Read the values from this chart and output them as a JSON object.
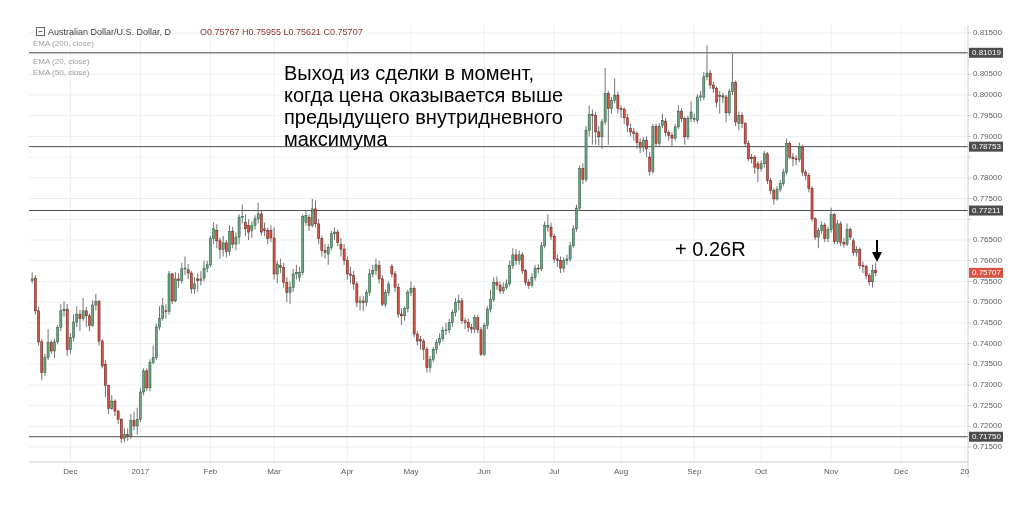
{
  "chart_data": {
    "type": "candlestick",
    "title": "Australian Dollar/U.S. Dollar, D",
    "subtitle": "O0.75767 H0.75955 L0.75621 C0.75707",
    "annotations": [
      "EMA (200, close)",
      "EMA (20, close)",
      "EMA (50, close)",
      "Выход из сделки в момент,\nкогда цена оказывается выше\nпредыдущего внутридневного\nмаксимума",
      "+ 0.26R",
      "0.75707"
    ],
    "categories": [
      null,
      null,
      null,
      null,
      null,
      null,
      null,
      null,
      null,
      null,
      null,
      null,
      "Dec",
      null,
      null,
      null,
      null,
      null,
      null,
      null,
      null,
      null,
      null,
      null,
      null,
      null,
      null,
      null,
      null,
      null,
      null,
      null,
      null,
      null,
      "2017",
      null,
      null,
      null,
      null,
      null,
      null,
      null,
      null,
      null,
      null,
      null,
      null,
      null,
      null,
      null,
      null,
      null,
      null,
      null,
      null,
      null,
      "Feb",
      null,
      null,
      null,
      null,
      null,
      null,
      null,
      null,
      null,
      null,
      null,
      null,
      null,
      null,
      null,
      null,
      null,
      null,
      null,
      "Mar",
      null,
      null,
      null,
      null,
      null,
      null,
      null,
      null,
      null,
      null,
      null,
      null,
      null,
      null,
      null,
      null,
      null,
      null,
      null,
      null,
      null,
      null,
      "Apr",
      null,
      null,
      null,
      null,
      null,
      null,
      null,
      null,
      null,
      null,
      null,
      null,
      null,
      null,
      null,
      null,
      null,
      null,
      null,
      "May",
      null,
      null,
      null,
      null,
      null,
      null,
      null,
      null,
      null,
      null,
      null,
      null,
      null,
      null,
      null,
      null,
      null,
      null,
      null,
      null,
      null,
      null,
      "Jun",
      null,
      null,
      null,
      null,
      null,
      null,
      null,
      null,
      null,
      null,
      null,
      null,
      null,
      null,
      null,
      null,
      null,
      null,
      null,
      null,
      null,
      "Jul",
      null,
      null,
      null,
      null,
      null,
      null,
      null,
      null,
      null,
      null,
      null,
      null,
      null,
      null,
      null,
      null,
      null,
      null,
      null,
      null,
      "Aug",
      null,
      null,
      null,
      null,
      null,
      null,
      null,
      null,
      null,
      null,
      null,
      null,
      null,
      null,
      null,
      null,
      null,
      null,
      null,
      null,
      null,
      null,
      "Sep",
      null,
      null,
      null,
      null,
      null,
      null,
      null,
      null,
      null,
      null,
      null,
      null,
      null,
      null,
      null,
      null,
      null,
      null,
      null,
      null,
      "Oct",
      null,
      null,
      null,
      null,
      null,
      null,
      null,
      null,
      null,
      null,
      null,
      null,
      null,
      null,
      null,
      null,
      null,
      null,
      null,
      null,
      null,
      "Nov",
      null,
      null,
      null,
      null,
      null,
      null,
      null,
      null,
      null,
      null,
      null,
      null,
      null,
      null,
      null,
      null,
      null,
      null,
      null,
      null,
      null,
      "Dec",
      null,
      null,
      null,
      null,
      null,
      null,
      null,
      null,
      null,
      null,
      null,
      null,
      null,
      null,
      null,
      null,
      null,
      null,
      null,
      "20"
    ],
    "ohlc": [
      [
        0.7552,
        0.7572,
        0.7545,
        0.7556
      ],
      [
        0.7558,
        0.7565,
        0.747,
        0.7479
      ],
      [
        0.7479,
        0.7488,
        0.7395,
        0.7404
      ],
      [
        0.7404,
        0.741,
        0.7312,
        0.733
      ],
      [
        0.733,
        0.7375,
        0.7322,
        0.7366
      ],
      [
        0.7366,
        0.7435,
        0.736,
        0.7402
      ],
      [
        0.7402,
        0.7408,
        0.7375,
        0.7382
      ],
      [
        0.7382,
        0.7412,
        0.7365,
        0.7404
      ],
      [
        0.7404,
        0.7445,
        0.7398,
        0.7439
      ],
      [
        0.7439,
        0.7495,
        0.743,
        0.7479
      ],
      [
        0.7479,
        0.7502,
        0.7465,
        0.7483
      ],
      [
        0.7483,
        0.7495,
        0.737,
        0.7385
      ],
      [
        0.7385,
        0.7425,
        0.7375,
        0.7414
      ],
      [
        0.7414,
        0.747,
        0.7405,
        0.7452
      ],
      [
        0.7452,
        0.749,
        0.744,
        0.7471
      ],
      [
        0.7471,
        0.7482,
        0.743,
        0.746
      ],
      [
        0.746,
        0.751,
        0.7455,
        0.7479
      ],
      [
        0.7479,
        0.7488,
        0.744,
        0.7467
      ],
      [
        0.7467,
        0.7472,
        0.743,
        0.7444
      ],
      [
        0.7444,
        0.7505,
        0.744,
        0.7493
      ],
      [
        0.7493,
        0.752,
        0.748,
        0.7501
      ],
      [
        0.7501,
        0.7505,
        0.7395,
        0.7406
      ],
      [
        0.7406,
        0.741,
        0.734,
        0.7346
      ],
      [
        0.735,
        0.736,
        0.727,
        0.7299
      ],
      [
        0.7299,
        0.73,
        0.723,
        0.7243
      ],
      [
        0.7243,
        0.7275,
        0.724,
        0.7261
      ],
      [
        0.7261,
        0.7265,
        0.7225,
        0.7237
      ],
      [
        0.7237,
        0.724,
        0.7205,
        0.7217
      ],
      [
        0.7217,
        0.722,
        0.716,
        0.7171
      ],
      [
        0.7171,
        0.7195,
        0.7162,
        0.718
      ],
      [
        0.718,
        0.7195,
        0.7165,
        0.7176
      ],
      [
        0.7176,
        0.723,
        0.717,
        0.7214
      ],
      [
        0.7214,
        0.7235,
        0.719,
        0.7201
      ],
      [
        0.7201,
        0.7245,
        0.718,
        0.7217
      ],
      [
        0.7217,
        0.7292,
        0.721,
        0.7283
      ],
      [
        0.7283,
        0.734,
        0.7275,
        0.7334
      ],
      [
        0.7334,
        0.734,
        0.7285,
        0.7293
      ],
      [
        0.7293,
        0.7362,
        0.7285,
        0.7354
      ],
      [
        0.7354,
        0.7395,
        0.735,
        0.7366
      ],
      [
        0.7366,
        0.7448,
        0.736,
        0.744
      ],
      [
        0.744,
        0.749,
        0.7432,
        0.746
      ],
      [
        0.746,
        0.751,
        0.7455,
        0.7491
      ],
      [
        0.7479,
        0.7495,
        0.746,
        0.7477
      ],
      [
        0.7477,
        0.7575,
        0.747,
        0.7568
      ],
      [
        0.7568,
        0.757,
        0.7495,
        0.7503
      ],
      [
        0.7503,
        0.7572,
        0.75,
        0.7556
      ],
      [
        0.7556,
        0.757,
        0.7535,
        0.7552
      ],
      [
        0.7552,
        0.7595,
        0.7545,
        0.758
      ],
      [
        0.758,
        0.761,
        0.7565,
        0.7582
      ],
      [
        0.7578,
        0.7592,
        0.7555,
        0.757
      ],
      [
        0.757,
        0.7575,
        0.752,
        0.7532
      ],
      [
        0.7532,
        0.756,
        0.752,
        0.7544
      ],
      [
        0.7556,
        0.757,
        0.7525,
        0.7552
      ],
      [
        0.7552,
        0.7575,
        0.754,
        0.7556
      ],
      [
        0.7558,
        0.76,
        0.755,
        0.7582
      ],
      [
        0.7582,
        0.76,
        0.7572,
        0.759
      ],
      [
        0.759,
        0.766,
        0.7585,
        0.7653
      ],
      [
        0.7653,
        0.7693,
        0.764,
        0.7677
      ],
      [
        0.7673,
        0.7688,
        0.763,
        0.7648
      ],
      [
        0.7648,
        0.7655,
        0.7605,
        0.7627
      ],
      [
        0.7627,
        0.766,
        0.761,
        0.7643
      ],
      [
        0.7643,
        0.765,
        0.7608,
        0.7622
      ],
      [
        0.7622,
        0.7685,
        0.7612,
        0.767
      ],
      [
        0.767,
        0.7682,
        0.763,
        0.764
      ],
      [
        0.764,
        0.7668,
        0.7625,
        0.7657
      ],
      [
        0.7657,
        0.7712,
        0.764,
        0.7705
      ],
      [
        0.7705,
        0.7735,
        0.769,
        0.7707
      ],
      [
        0.7693,
        0.7712,
        0.766,
        0.7677
      ],
      [
        0.7685,
        0.77,
        0.765,
        0.7669
      ],
      [
        0.7673,
        0.7695,
        0.7655,
        0.7685
      ],
      [
        0.7685,
        0.771,
        0.7675,
        0.7701
      ],
      [
        0.7701,
        0.774,
        0.769,
        0.7713
      ],
      [
        0.7713,
        0.772,
        0.766,
        0.7669
      ],
      [
        0.7677,
        0.7692,
        0.766,
        0.7673
      ],
      [
        0.7673,
        0.768,
        0.764,
        0.7653
      ],
      [
        0.7673,
        0.7685,
        0.7645,
        0.7655
      ],
      [
        0.7655,
        0.768,
        0.7555,
        0.7568
      ],
      [
        0.7568,
        0.76,
        0.7545,
        0.7592
      ],
      [
        0.7588,
        0.7605,
        0.757,
        0.7584
      ],
      [
        0.7584,
        0.7595,
        0.7535,
        0.7548
      ],
      [
        0.7548,
        0.756,
        0.75,
        0.7523
      ],
      [
        0.7523,
        0.755,
        0.7495,
        0.7536
      ],
      [
        0.7536,
        0.758,
        0.7525,
        0.7568
      ],
      [
        0.7568,
        0.759,
        0.7555,
        0.7572
      ],
      [
        0.756,
        0.7585,
        0.755,
        0.7572
      ],
      [
        0.7572,
        0.7712,
        0.7565,
        0.7707
      ],
      [
        0.7693,
        0.772,
        0.7685,
        0.7709
      ],
      [
        0.7705,
        0.7712,
        0.7672,
        0.7685
      ],
      [
        0.7685,
        0.7749,
        0.768,
        0.7725
      ],
      [
        0.7725,
        0.7745,
        0.768,
        0.7689
      ],
      [
        0.7689,
        0.77,
        0.764,
        0.7653
      ],
      [
        0.7653,
        0.766,
        0.761,
        0.7624
      ],
      [
        0.7624,
        0.764,
        0.7605,
        0.762
      ],
      [
        0.7616,
        0.764,
        0.759,
        0.7632
      ],
      [
        0.7632,
        0.7672,
        0.7625,
        0.7665
      ],
      [
        0.7665,
        0.768,
        0.765,
        0.7669
      ],
      [
        0.7669,
        0.7675,
        0.7635,
        0.7644
      ],
      [
        0.764,
        0.7655,
        0.761,
        0.7628
      ],
      [
        0.7628,
        0.764,
        0.759,
        0.76
      ],
      [
        0.76,
        0.761,
        0.7555,
        0.7568
      ],
      [
        0.7568,
        0.7585,
        0.7545,
        0.7564
      ],
      [
        0.7564,
        0.7575,
        0.753,
        0.7544
      ],
      [
        0.7544,
        0.755,
        0.7488,
        0.7499
      ],
      [
        0.7499,
        0.7515,
        0.748,
        0.7503
      ],
      [
        0.7503,
        0.7515,
        0.7478,
        0.7499
      ],
      [
        0.7499,
        0.753,
        0.749,
        0.7523
      ],
      [
        0.7523,
        0.758,
        0.7515,
        0.7568
      ],
      [
        0.7568,
        0.759,
        0.756,
        0.7576
      ],
      [
        0.7576,
        0.7605,
        0.7565,
        0.759
      ],
      [
        0.7588,
        0.76,
        0.7545,
        0.7556
      ],
      [
        0.7556,
        0.7565,
        0.749,
        0.7495
      ],
      [
        0.7495,
        0.753,
        0.7488,
        0.7523
      ],
      [
        0.7523,
        0.755,
        0.7515,
        0.7544
      ],
      [
        0.7586,
        0.7592,
        0.756,
        0.7568
      ],
      [
        0.7568,
        0.7575,
        0.7525,
        0.7536
      ],
      [
        0.7536,
        0.7545,
        0.7462,
        0.7471
      ],
      [
        0.7471,
        0.7485,
        0.7445,
        0.7467
      ],
      [
        0.7467,
        0.749,
        0.7455,
        0.7485
      ],
      [
        0.7485,
        0.753,
        0.7475,
        0.7523
      ],
      [
        0.7523,
        0.755,
        0.7515,
        0.7533
      ],
      [
        0.7533,
        0.754,
        0.7415,
        0.7423
      ],
      [
        0.7423,
        0.743,
        0.7395,
        0.7406
      ],
      [
        0.741,
        0.7418,
        0.7385,
        0.7406
      ],
      [
        0.7406,
        0.7412,
        0.736,
        0.7386
      ],
      [
        0.7386,
        0.7392,
        0.733,
        0.7342
      ],
      [
        0.7342,
        0.737,
        0.733,
        0.7362
      ],
      [
        0.7362,
        0.7392,
        0.7355,
        0.7386
      ],
      [
        0.7386,
        0.741,
        0.7375,
        0.7402
      ],
      [
        0.7402,
        0.7425,
        0.7395,
        0.7412
      ],
      [
        0.7412,
        0.744,
        0.7405,
        0.7431
      ],
      [
        0.7431,
        0.745,
        0.742,
        0.7433
      ],
      [
        0.7433,
        0.746,
        0.7425,
        0.7451
      ],
      [
        0.7451,
        0.7482,
        0.744,
        0.7475
      ],
      [
        0.7475,
        0.751,
        0.7465,
        0.7499
      ],
      [
        0.7499,
        0.7518,
        0.748,
        0.7503
      ],
      [
        0.7503,
        0.751,
        0.7448,
        0.7455
      ],
      [
        0.7455,
        0.7462,
        0.7435,
        0.7451
      ],
      [
        0.7451,
        0.746,
        0.7428,
        0.7439
      ],
      [
        0.7439,
        0.7448,
        0.7425,
        0.7435
      ],
      [
        0.7435,
        0.747,
        0.7425,
        0.7463
      ],
      [
        0.7463,
        0.747,
        0.7425,
        0.7433
      ],
      [
        0.7433,
        0.744,
        0.737,
        0.7374
      ],
      [
        0.7374,
        0.745,
        0.737,
        0.7443
      ],
      [
        0.7443,
        0.749,
        0.7435,
        0.7483
      ],
      [
        0.7483,
        0.753,
        0.7475,
        0.7507
      ],
      [
        0.7507,
        0.756,
        0.75,
        0.7548
      ],
      [
        0.7548,
        0.7562,
        0.753,
        0.7541
      ],
      [
        0.7541,
        0.755,
        0.752,
        0.7527
      ],
      [
        0.7527,
        0.7548,
        0.752,
        0.7536
      ],
      [
        0.7536,
        0.7555,
        0.753,
        0.7544
      ],
      [
        0.7544,
        0.76,
        0.7538,
        0.7588
      ],
      [
        0.7588,
        0.763,
        0.758,
        0.7614
      ],
      [
        0.7614,
        0.7628,
        0.759,
        0.76
      ],
      [
        0.76,
        0.7625,
        0.759,
        0.7614
      ],
      [
        0.7614,
        0.762,
        0.7568,
        0.7576
      ],
      [
        0.7576,
        0.758,
        0.754,
        0.7548
      ],
      [
        0.7548,
        0.7555,
        0.7532,
        0.7541
      ],
      [
        0.7541,
        0.757,
        0.7535,
        0.756
      ],
      [
        0.756,
        0.759,
        0.7552,
        0.7582
      ],
      [
        0.7582,
        0.7592,
        0.757,
        0.758
      ],
      [
        0.758,
        0.7645,
        0.7575,
        0.7636
      ],
      [
        0.7636,
        0.7695,
        0.763,
        0.7685
      ],
      [
        0.7681,
        0.7712,
        0.767,
        0.7685
      ],
      [
        0.7681,
        0.7692,
        0.765,
        0.7659
      ],
      [
        0.7659,
        0.7665,
        0.7595,
        0.7604
      ],
      [
        0.7604,
        0.7615,
        0.7585,
        0.76
      ],
      [
        0.76,
        0.761,
        0.757,
        0.7582
      ],
      [
        0.7582,
        0.7608,
        0.7572,
        0.76
      ],
      [
        0.76,
        0.7615,
        0.759,
        0.7604
      ],
      [
        0.7604,
        0.7645,
        0.7598,
        0.7636
      ],
      [
        0.7636,
        0.7685,
        0.763,
        0.7677
      ],
      [
        0.7677,
        0.7735,
        0.767,
        0.7727
      ],
      [
        0.7727,
        0.783,
        0.772,
        0.7822
      ],
      [
        0.7822,
        0.7835,
        0.7785,
        0.7796
      ],
      [
        0.7796,
        0.7925,
        0.779,
        0.7915
      ],
      [
        0.7915,
        0.7975,
        0.79,
        0.7953
      ],
      [
        0.7953,
        0.7965,
        0.788,
        0.7951
      ],
      [
        0.7951,
        0.796,
        0.788,
        0.7911
      ],
      [
        0.7911,
        0.7925,
        0.7878,
        0.7899
      ],
      [
        0.7899,
        0.7942,
        0.787,
        0.7935
      ],
      [
        0.7935,
        0.8065,
        0.7928,
        0.8004
      ],
      [
        0.8004,
        0.801,
        0.788,
        0.7967
      ],
      [
        0.7967,
        0.7995,
        0.7955,
        0.7987
      ],
      [
        0.7987,
        0.804,
        0.798,
        0.8
      ],
      [
        0.8,
        0.8008,
        0.7955,
        0.7967
      ],
      [
        0.7967,
        0.7975,
        0.7945,
        0.7966
      ],
      [
        0.7966,
        0.797,
        0.793,
        0.7945
      ],
      [
        0.7945,
        0.7955,
        0.791,
        0.7927
      ],
      [
        0.7919,
        0.793,
        0.79,
        0.7911
      ],
      [
        0.7911,
        0.792,
        0.789,
        0.7907
      ],
      [
        0.7907,
        0.7912,
        0.787,
        0.7885
      ],
      [
        0.7885,
        0.7895,
        0.786,
        0.7874
      ],
      [
        0.7874,
        0.7898,
        0.7862,
        0.7891
      ],
      [
        0.7891,
        0.79,
        0.785,
        0.787
      ],
      [
        0.785,
        0.7862,
        0.7806,
        0.7816
      ],
      [
        0.7816,
        0.793,
        0.781,
        0.7924
      ],
      [
        0.7924,
        0.793,
        0.7875,
        0.7883
      ],
      [
        0.7883,
        0.7932,
        0.7875,
        0.7924
      ],
      [
        0.7927,
        0.7955,
        0.792,
        0.7939
      ],
      [
        0.7937,
        0.7945,
        0.79,
        0.7909
      ],
      [
        0.7909,
        0.7915,
        0.789,
        0.7903
      ],
      [
        0.7903,
        0.791,
        0.7875,
        0.7896
      ],
      [
        0.7896,
        0.793,
        0.789,
        0.7923
      ],
      [
        0.7923,
        0.7975,
        0.7918,
        0.7961
      ],
      [
        0.7961,
        0.7968,
        0.7935,
        0.7943
      ],
      [
        0.7943,
        0.7948,
        0.788,
        0.7899
      ],
      [
        0.7899,
        0.795,
        0.7892,
        0.7943
      ],
      [
        0.7943,
        0.7985,
        0.7935,
        0.7959
      ],
      [
        0.7941,
        0.7955,
        0.7935,
        0.7943
      ],
      [
        0.7939,
        0.8002,
        0.7932,
        0.7995
      ],
      [
        0.7995,
        0.801,
        0.7985,
        0.7998
      ],
      [
        0.7995,
        0.8055,
        0.7988,
        0.8044
      ],
      [
        0.8044,
        0.8121,
        0.8035,
        0.8052
      ],
      [
        0.8052,
        0.806,
        0.8015,
        0.8024
      ],
      [
        0.8024,
        0.8032,
        0.8005,
        0.8016
      ],
      [
        0.8016,
        0.802,
        0.797,
        0.7983
      ],
      [
        0.7997,
        0.801,
        0.7955,
        0.7999
      ],
      [
        0.7998,
        0.8005,
        0.798,
        0.7995
      ],
      [
        0.7995,
        0.8,
        0.7935,
        0.7957
      ],
      [
        0.7957,
        0.8015,
        0.795,
        0.8008
      ],
      [
        0.8008,
        0.81,
        0.8,
        0.803
      ],
      [
        0.803,
        0.8035,
        0.7925,
        0.7935
      ],
      [
        0.7931,
        0.796,
        0.7915,
        0.7951
      ],
      [
        0.7951,
        0.7958,
        0.792,
        0.7931
      ],
      [
        0.7931,
        0.7935,
        0.7875,
        0.7883
      ],
      [
        0.7883,
        0.789,
        0.784,
        0.7846
      ],
      [
        0.785,
        0.7858,
        0.7835,
        0.7846
      ],
      [
        0.785,
        0.7855,
        0.781,
        0.7826
      ],
      [
        0.7834,
        0.784,
        0.779,
        0.7822
      ],
      [
        0.7822,
        0.7842,
        0.7815,
        0.7834
      ],
      [
        0.7834,
        0.7865,
        0.7825,
        0.7858
      ],
      [
        0.7858,
        0.7862,
        0.7785,
        0.7794
      ],
      [
        0.7794,
        0.78,
        0.776,
        0.7769
      ],
      [
        0.7769,
        0.7775,
        0.7735,
        0.7749
      ],
      [
        0.7749,
        0.778,
        0.7745,
        0.7772
      ],
      [
        0.7772,
        0.7795,
        0.7765,
        0.7786
      ],
      [
        0.7786,
        0.7822,
        0.778,
        0.7814
      ],
      [
        0.7814,
        0.7895,
        0.7808,
        0.7883
      ],
      [
        0.7883,
        0.7888,
        0.7845,
        0.785
      ],
      [
        0.785,
        0.786,
        0.7828,
        0.7846
      ],
      [
        0.7846,
        0.7855,
        0.783,
        0.7844
      ],
      [
        0.7844,
        0.7885,
        0.7838,
        0.7874
      ],
      [
        0.7874,
        0.788,
        0.7805,
        0.7814
      ],
      [
        0.7814,
        0.782,
        0.7795,
        0.7806
      ],
      [
        0.7806,
        0.7812,
        0.7765,
        0.7774
      ],
      [
        0.7774,
        0.778,
        0.7695,
        0.7701
      ],
      [
        0.7701,
        0.7705,
        0.765,
        0.7657
      ],
      [
        0.7657,
        0.768,
        0.763,
        0.7673
      ],
      [
        0.7673,
        0.7695,
        0.7665,
        0.7686
      ],
      [
        0.7686,
        0.7692,
        0.7645,
        0.7653
      ],
      [
        0.7653,
        0.7682,
        0.7645,
        0.7675
      ],
      [
        0.7675,
        0.7728,
        0.7668,
        0.7711
      ],
      [
        0.7711,
        0.7715,
        0.764,
        0.7646
      ],
      [
        0.7646,
        0.7698,
        0.764,
        0.7689
      ],
      [
        0.7689,
        0.7695,
        0.7635,
        0.7644
      ],
      [
        0.7644,
        0.7655,
        0.7632,
        0.764
      ],
      [
        0.764,
        0.769,
        0.7635,
        0.7675
      ],
      [
        0.7675,
        0.768,
        0.765,
        0.7657
      ],
      [
        0.7648,
        0.7655,
        0.7612,
        0.762
      ],
      [
        0.762,
        0.7635,
        0.761,
        0.7627
      ],
      [
        0.7627,
        0.7632,
        0.758,
        0.7588
      ],
      [
        0.7588,
        0.7598,
        0.757,
        0.7586
      ],
      [
        0.7586,
        0.759,
        0.7555,
        0.7564
      ],
      [
        0.7564,
        0.757,
        0.754,
        0.7549
      ],
      [
        0.7549,
        0.759,
        0.7535,
        0.7576
      ],
      [
        0.75767,
        0.75955,
        0.75621,
        0.75707
      ],
      null,
      null,
      null,
      null,
      null,
      null,
      null,
      null,
      null,
      null,
      null,
      null,
      null,
      null,
      null,
      null,
      null,
      null,
      null,
      null,
      null,
      null,
      null,
      null,
      null,
      null,
      null,
      null
    ],
    "ylim": [
      0.7114,
      0.8169
    ],
    "yticks": [
      {
        "value": 0.715,
        "label": "0.71500"
      },
      {
        "value": 0.72,
        "label": "0.72000"
      },
      {
        "value": 0.725,
        "label": "0.72500"
      },
      {
        "value": 0.73,
        "label": "0.73000"
      },
      {
        "value": 0.735,
        "label": "0.73500"
      },
      {
        "value": 0.74,
        "label": "0.74000"
      },
      {
        "value": 0.745,
        "label": "0.74500"
      },
      {
        "value": 0.75,
        "label": "0.75000"
      },
      {
        "value": 0.755,
        "label": "0.75500"
      },
      {
        "value": 0.76,
        "label": "0.76000"
      },
      {
        "value": 0.765,
        "label": "0.76500"
      },
      {
        "value": 0.77,
        "label": null
      },
      {
        "value": 0.775,
        "label": "0.77500"
      },
      {
        "value": 0.78,
        "label": "0.78000"
      },
      {
        "value": 0.785,
        "label": null
      },
      {
        "value": 0.79,
        "label": "0.79000"
      },
      {
        "value": 0.795,
        "label": "0.79500"
      },
      {
        "value": 0.8,
        "label": "0.80000"
      },
      {
        "value": 0.805,
        "label": "0.80500"
      },
      {
        "value": 0.81,
        "label": null
      },
      {
        "value": 0.815,
        "label": "0.81500"
      }
    ],
    "grid": true,
    "ref_lines": [
      {
        "axis": "y",
        "value": 0.81019,
        "label": "0.81019",
        "color": "#4d4d4d"
      },
      {
        "axis": "y",
        "value": 0.78753,
        "label": "0.78753",
        "color": "#4d4d4d"
      },
      {
        "axis": "y",
        "value": 0.77211,
        "label": "0.77211",
        "color": "#4d4d4d"
      },
      {
        "axis": "y",
        "value": 0.7175,
        "label": "0.71750",
        "color": "#4d4d4d"
      }
    ]
  }
}
